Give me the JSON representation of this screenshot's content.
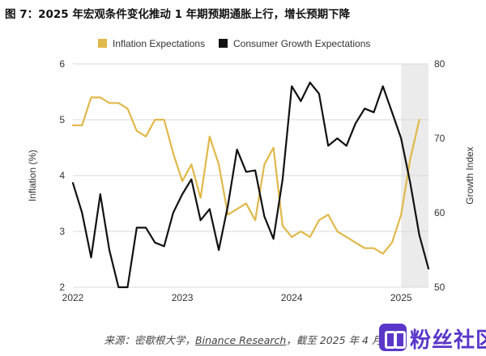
{
  "figure": {
    "title": "图 7：2025 年宏观条件变化推动 1 年期预期通胀上行，增长预期下降",
    "source_prefix": "来源：密歇根大学，",
    "source_brand": "Binance Research",
    "source_suffix": "，截至 2025 年 4 月",
    "watermark": "粉丝社区"
  },
  "colors": {
    "inflation": "#E1B84A",
    "growth": "#111111",
    "shade": "#EBEBEB",
    "grid": "#D9D9D9"
  },
  "chart_data": {
    "type": "line",
    "title": "",
    "xlabel": "",
    "legend_position": "top",
    "grid": true,
    "x_ticks": [
      "2022",
      "2023",
      "2024",
      "2025"
    ],
    "shaded_region": {
      "start": "2025-01",
      "end": "2025-04"
    },
    "left_axis": {
      "label": "Inflation (%)",
      "min": 2,
      "max": 6,
      "ticks": [
        "2",
        "3",
        "4",
        "5",
        "6"
      ]
    },
    "right_axis": {
      "label": "Growth Index",
      "min": 50,
      "max": 80,
      "ticks": [
        "50",
        "60",
        "70",
        "80"
      ]
    },
    "series": [
      {
        "name": "Inflation Expectations",
        "axis": "left",
        "color": "#E1B84A",
        "points": [
          [
            "2022-01",
            4.9
          ],
          [
            "2022-02",
            4.9
          ],
          [
            "2022-03",
            5.4
          ],
          [
            "2022-04",
            5.4
          ],
          [
            "2022-05",
            5.3
          ],
          [
            "2022-06",
            5.3
          ],
          [
            "2022-07",
            5.2
          ],
          [
            "2022-08",
            4.8
          ],
          [
            "2022-09",
            4.7
          ],
          [
            "2022-10",
            5.0
          ],
          [
            "2022-11",
            5.0
          ],
          [
            "2022-12",
            4.4
          ],
          [
            "2023-01",
            3.9
          ],
          [
            "2023-02",
            4.2
          ],
          [
            "2023-03",
            3.6
          ],
          [
            "2023-04",
            4.7
          ],
          [
            "2023-05",
            4.2
          ],
          [
            "2023-06",
            3.3
          ],
          [
            "2023-07",
            3.4
          ],
          [
            "2023-08",
            3.5
          ],
          [
            "2023-09",
            3.2
          ],
          [
            "2023-10",
            4.2
          ],
          [
            "2023-11",
            4.5
          ],
          [
            "2023-12",
            3.1
          ],
          [
            "2024-01",
            2.9
          ],
          [
            "2024-02",
            3.0
          ],
          [
            "2024-03",
            2.9
          ],
          [
            "2024-04",
            3.2
          ],
          [
            "2024-05",
            3.3
          ],
          [
            "2024-06",
            3.0
          ],
          [
            "2024-07",
            2.9
          ],
          [
            "2024-08",
            2.8
          ],
          [
            "2024-09",
            2.7
          ],
          [
            "2024-10",
            2.7
          ],
          [
            "2024-11",
            2.6
          ],
          [
            "2024-12",
            2.8
          ],
          [
            "2025-01",
            3.3
          ],
          [
            "2025-02",
            4.3
          ],
          [
            "2025-03",
            5.0
          ]
        ]
      },
      {
        "name": "Consumer Growth Expectations",
        "axis": "right",
        "color": "#111111",
        "points": [
          [
            "2022-01",
            64.0
          ],
          [
            "2022-02",
            60.0
          ],
          [
            "2022-03",
            54.0
          ],
          [
            "2022-04",
            62.5
          ],
          [
            "2022-05",
            55.0
          ],
          [
            "2022-06",
            50.0
          ],
          [
            "2022-07",
            50.0
          ],
          [
            "2022-08",
            58.0
          ],
          [
            "2022-09",
            58.0
          ],
          [
            "2022-10",
            56.0
          ],
          [
            "2022-11",
            55.5
          ],
          [
            "2022-12",
            60.0
          ],
          [
            "2023-01",
            62.5
          ],
          [
            "2023-02",
            64.5
          ],
          [
            "2023-03",
            59.0
          ],
          [
            "2023-04",
            60.5
          ],
          [
            "2023-05",
            55.0
          ],
          [
            "2023-06",
            61.0
          ],
          [
            "2023-07",
            68.5
          ],
          [
            "2023-08",
            65.5
          ],
          [
            "2023-09",
            65.7
          ],
          [
            "2023-10",
            59.5
          ],
          [
            "2023-11",
            56.5
          ],
          [
            "2023-12",
            64.5
          ],
          [
            "2024-01",
            77.0
          ],
          [
            "2024-02",
            75.0
          ],
          [
            "2024-03",
            77.5
          ],
          [
            "2024-04",
            76.0
          ],
          [
            "2024-05",
            69.0
          ],
          [
            "2024-06",
            70.0
          ],
          [
            "2024-07",
            69.0
          ],
          [
            "2024-08",
            72.0
          ],
          [
            "2024-09",
            74.0
          ],
          [
            "2024-10",
            73.5
          ],
          [
            "2024-11",
            77.0
          ],
          [
            "2024-12",
            73.5
          ],
          [
            "2025-01",
            70.0
          ],
          [
            "2025-02",
            64.0
          ],
          [
            "2025-03",
            57.0
          ],
          [
            "2025-04",
            52.5
          ]
        ]
      }
    ]
  }
}
